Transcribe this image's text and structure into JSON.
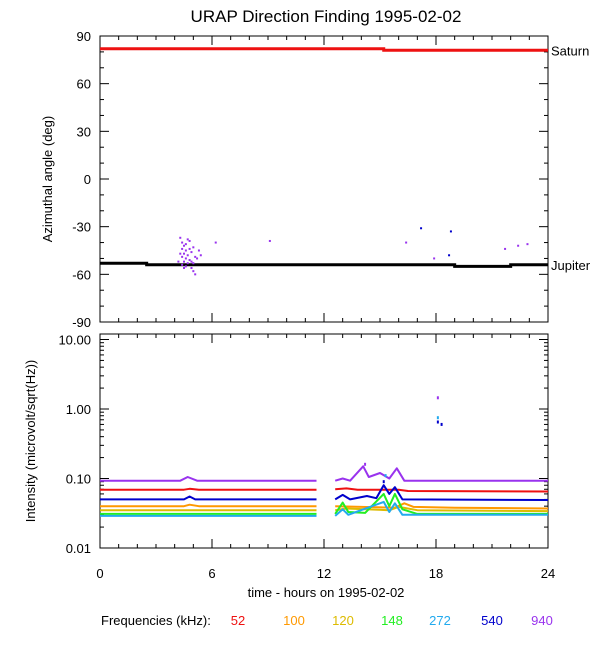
{
  "chart_data": [
    {
      "type": "scatter",
      "title": "URAP Direction Finding  1995-02-02",
      "ylabel": "Azimuthal angle (deg)",
      "xlim": [
        0,
        24
      ],
      "ylim": [
        -90,
        90
      ],
      "x_ticks": [
        0,
        6,
        12,
        18,
        24
      ],
      "y_ticks": [
        90,
        60,
        30,
        0,
        -30,
        -60,
        -90
      ],
      "y_tick_labels": [
        "90",
        "60",
        "30",
        "0",
        "-30",
        "-60",
        "-90"
      ],
      "reference_lines": [
        {
          "name": "Saturn",
          "color": "#ee1111",
          "points": [
            [
              0,
              82
            ],
            [
              15.2,
              82
            ],
            [
              15.2,
              81
            ],
            [
              24,
              81
            ]
          ]
        },
        {
          "name": "Jupiter",
          "color": "#000000",
          "points": [
            [
              0,
              -53
            ],
            [
              2.5,
              -53
            ],
            [
              2.5,
              -54
            ],
            [
              19,
              -54
            ],
            [
              19,
              -55
            ],
            [
              22,
              -55
            ],
            [
              22,
              -54
            ],
            [
              24,
              -54
            ]
          ]
        }
      ],
      "series": [
        {
          "color": "#9933ee",
          "points": [
            [
              4.3,
              -37
            ],
            [
              4.4,
              -40
            ],
            [
              4.5,
              -42
            ],
            [
              4.4,
              -44
            ],
            [
              4.6,
              -45
            ],
            [
              4.5,
              -47
            ],
            [
              4.7,
              -48
            ],
            [
              4.4,
              -49
            ],
            [
              4.6,
              -50
            ],
            [
              4.8,
              -51
            ],
            [
              4.5,
              -52
            ],
            [
              4.7,
              -53
            ],
            [
              4.9,
              -46
            ],
            [
              5.0,
              -43
            ],
            [
              4.8,
              -39
            ],
            [
              5.1,
              -49
            ],
            [
              4.6,
              -55
            ],
            [
              4.9,
              -56
            ],
            [
              5.0,
              -58
            ],
            [
              5.1,
              -60
            ],
            [
              4.3,
              -47
            ],
            [
              4.2,
              -52
            ],
            [
              4.8,
              -44
            ],
            [
              4.7,
              -38
            ],
            [
              4.6,
              -41
            ],
            [
              5.2,
              -50
            ],
            [
              5.0,
              -53
            ],
            [
              4.5,
              -56
            ],
            [
              4.9,
              -52
            ],
            [
              4.4,
              -54
            ],
            [
              5.3,
              -45
            ],
            [
              5.4,
              -48
            ],
            [
              6.2,
              -40
            ],
            [
              9.1,
              -39
            ],
            [
              16.4,
              -40
            ],
            [
              17.9,
              -50
            ],
            [
              21.7,
              -44
            ],
            [
              22.4,
              -42
            ],
            [
              22.9,
              -41
            ]
          ]
        },
        {
          "color": "#0000cc",
          "points": [
            [
              17.2,
              -31
            ],
            [
              18.8,
              -33
            ],
            [
              18.7,
              -48
            ]
          ]
        }
      ]
    },
    {
      "type": "line",
      "ylabel": "Intensity (microvolt/sqrt(Hz))",
      "xlabel": "time - hours on 1995-02-02",
      "xlim": [
        0,
        24
      ],
      "ylim": [
        0.01,
        12
      ],
      "yscale": "log",
      "x_ticks": [
        0,
        6,
        12,
        18,
        24
      ],
      "x_tick_labels": [
        "0",
        "6",
        "12",
        "18",
        "24"
      ],
      "y_ticks": [
        10,
        1,
        0.1,
        0.01
      ],
      "y_tick_labels": [
        "10.00",
        "1.00",
        "0.10",
        "0.01"
      ],
      "series": [
        {
          "name": "52",
          "color": "#ee1111",
          "points": [
            [
              0,
              0.069
            ],
            [
              4.5,
              0.069
            ],
            [
              4.8,
              0.071
            ],
            [
              5.3,
              0.069
            ],
            [
              11.6,
              0.069
            ],
            [
              12.6,
              0.07
            ],
            [
              13.2,
              0.072
            ],
            [
              13.8,
              0.069
            ],
            [
              16,
              0.069
            ],
            [
              16.5,
              0.066
            ],
            [
              24,
              0.065
            ]
          ]
        },
        {
          "name": "100",
          "color": "#ff9900",
          "points": [
            [
              0,
              0.04
            ],
            [
              4.5,
              0.04
            ],
            [
              4.8,
              0.042
            ],
            [
              5.3,
              0.04
            ],
            [
              11.6,
              0.04
            ],
            [
              12.6,
              0.04
            ],
            [
              14,
              0.039
            ],
            [
              15.8,
              0.038
            ],
            [
              16.3,
              0.044
            ],
            [
              16.8,
              0.039
            ],
            [
              19,
              0.038
            ],
            [
              24,
              0.037
            ]
          ]
        },
        {
          "name": "120",
          "color": "#ddbb00",
          "points": [
            [
              0,
              0.035
            ],
            [
              11.6,
              0.035
            ],
            [
              12.6,
              0.035
            ],
            [
              13.2,
              0.037
            ],
            [
              15.5,
              0.035
            ],
            [
              16,
              0.039
            ],
            [
              17,
              0.035
            ],
            [
              24,
              0.034
            ]
          ]
        },
        {
          "name": "148",
          "color": "#22ee22",
          "points": [
            [
              0,
              0.031
            ],
            [
              11.6,
              0.031
            ],
            [
              12.6,
              0.031
            ],
            [
              13.0,
              0.045
            ],
            [
              13.3,
              0.033
            ],
            [
              14.2,
              0.032
            ],
            [
              15.2,
              0.06
            ],
            [
              15.5,
              0.04
            ],
            [
              15.8,
              0.06
            ],
            [
              16.2,
              0.036
            ],
            [
              17,
              0.031
            ],
            [
              24,
              0.031
            ]
          ]
        },
        {
          "name": "272",
          "color": "#22aaee",
          "points": [
            [
              0,
              0.029
            ],
            [
              11.6,
              0.029
            ],
            [
              12.6,
              0.029
            ],
            [
              13.0,
              0.036
            ],
            [
              13.3,
              0.03
            ],
            [
              15.2,
              0.046
            ],
            [
              15.5,
              0.033
            ],
            [
              15.8,
              0.044
            ],
            [
              16.2,
              0.03
            ],
            [
              24,
              0.03
            ]
          ]
        },
        {
          "name": "540",
          "color": "#0000cc",
          "points": [
            [
              0,
              0.05
            ],
            [
              4.5,
              0.05
            ],
            [
              4.8,
              0.055
            ],
            [
              5.1,
              0.05
            ],
            [
              11.6,
              0.05
            ],
            [
              12.6,
              0.05
            ],
            [
              13.0,
              0.058
            ],
            [
              13.4,
              0.05
            ],
            [
              14.3,
              0.056
            ],
            [
              14.8,
              0.052
            ],
            [
              15.2,
              0.08
            ],
            [
              15.5,
              0.06
            ],
            [
              15.8,
              0.075
            ],
            [
              16.2,
              0.05
            ],
            [
              24,
              0.049
            ]
          ]
        },
        {
          "name": "940",
          "color": "#9933ee",
          "points": [
            [
              0,
              0.093
            ],
            [
              4.3,
              0.093
            ],
            [
              4.7,
              0.105
            ],
            [
              5.2,
              0.093
            ],
            [
              11.6,
              0.093
            ],
            [
              12.6,
              0.093
            ],
            [
              13.0,
              0.1
            ],
            [
              13.4,
              0.093
            ],
            [
              14.1,
              0.15
            ],
            [
              14.4,
              0.105
            ],
            [
              15.0,
              0.12
            ],
            [
              15.5,
              0.1
            ],
            [
              15.9,
              0.14
            ],
            [
              16.3,
              0.093
            ],
            [
              24,
              0.093
            ]
          ]
        }
      ],
      "scatter": [
        {
          "color": "#9933ee",
          "points": [
            [
              18.1,
              1.45
            ],
            [
              14.2,
              0.16
            ]
          ]
        },
        {
          "color": "#22aaee",
          "points": [
            [
              18.1,
              0.75
            ],
            [
              15.3,
              0.11
            ]
          ]
        },
        {
          "color": "#0000cc",
          "points": [
            [
              18.1,
              0.65
            ],
            [
              18.3,
              0.6
            ],
            [
              15.2,
              0.09
            ]
          ]
        }
      ]
    }
  ],
  "legend": {
    "title": "Frequencies (kHz):",
    "items": [
      {
        "label": "52",
        "color": "#ee1111"
      },
      {
        "label": "100",
        "color": "#ff9900"
      },
      {
        "label": "120",
        "color": "#ddbb00"
      },
      {
        "label": "148",
        "color": "#22ee22"
      },
      {
        "label": "272",
        "color": "#22aaee"
      },
      {
        "label": "540",
        "color": "#0000cc"
      },
      {
        "label": "940",
        "color": "#9933ee"
      }
    ]
  }
}
